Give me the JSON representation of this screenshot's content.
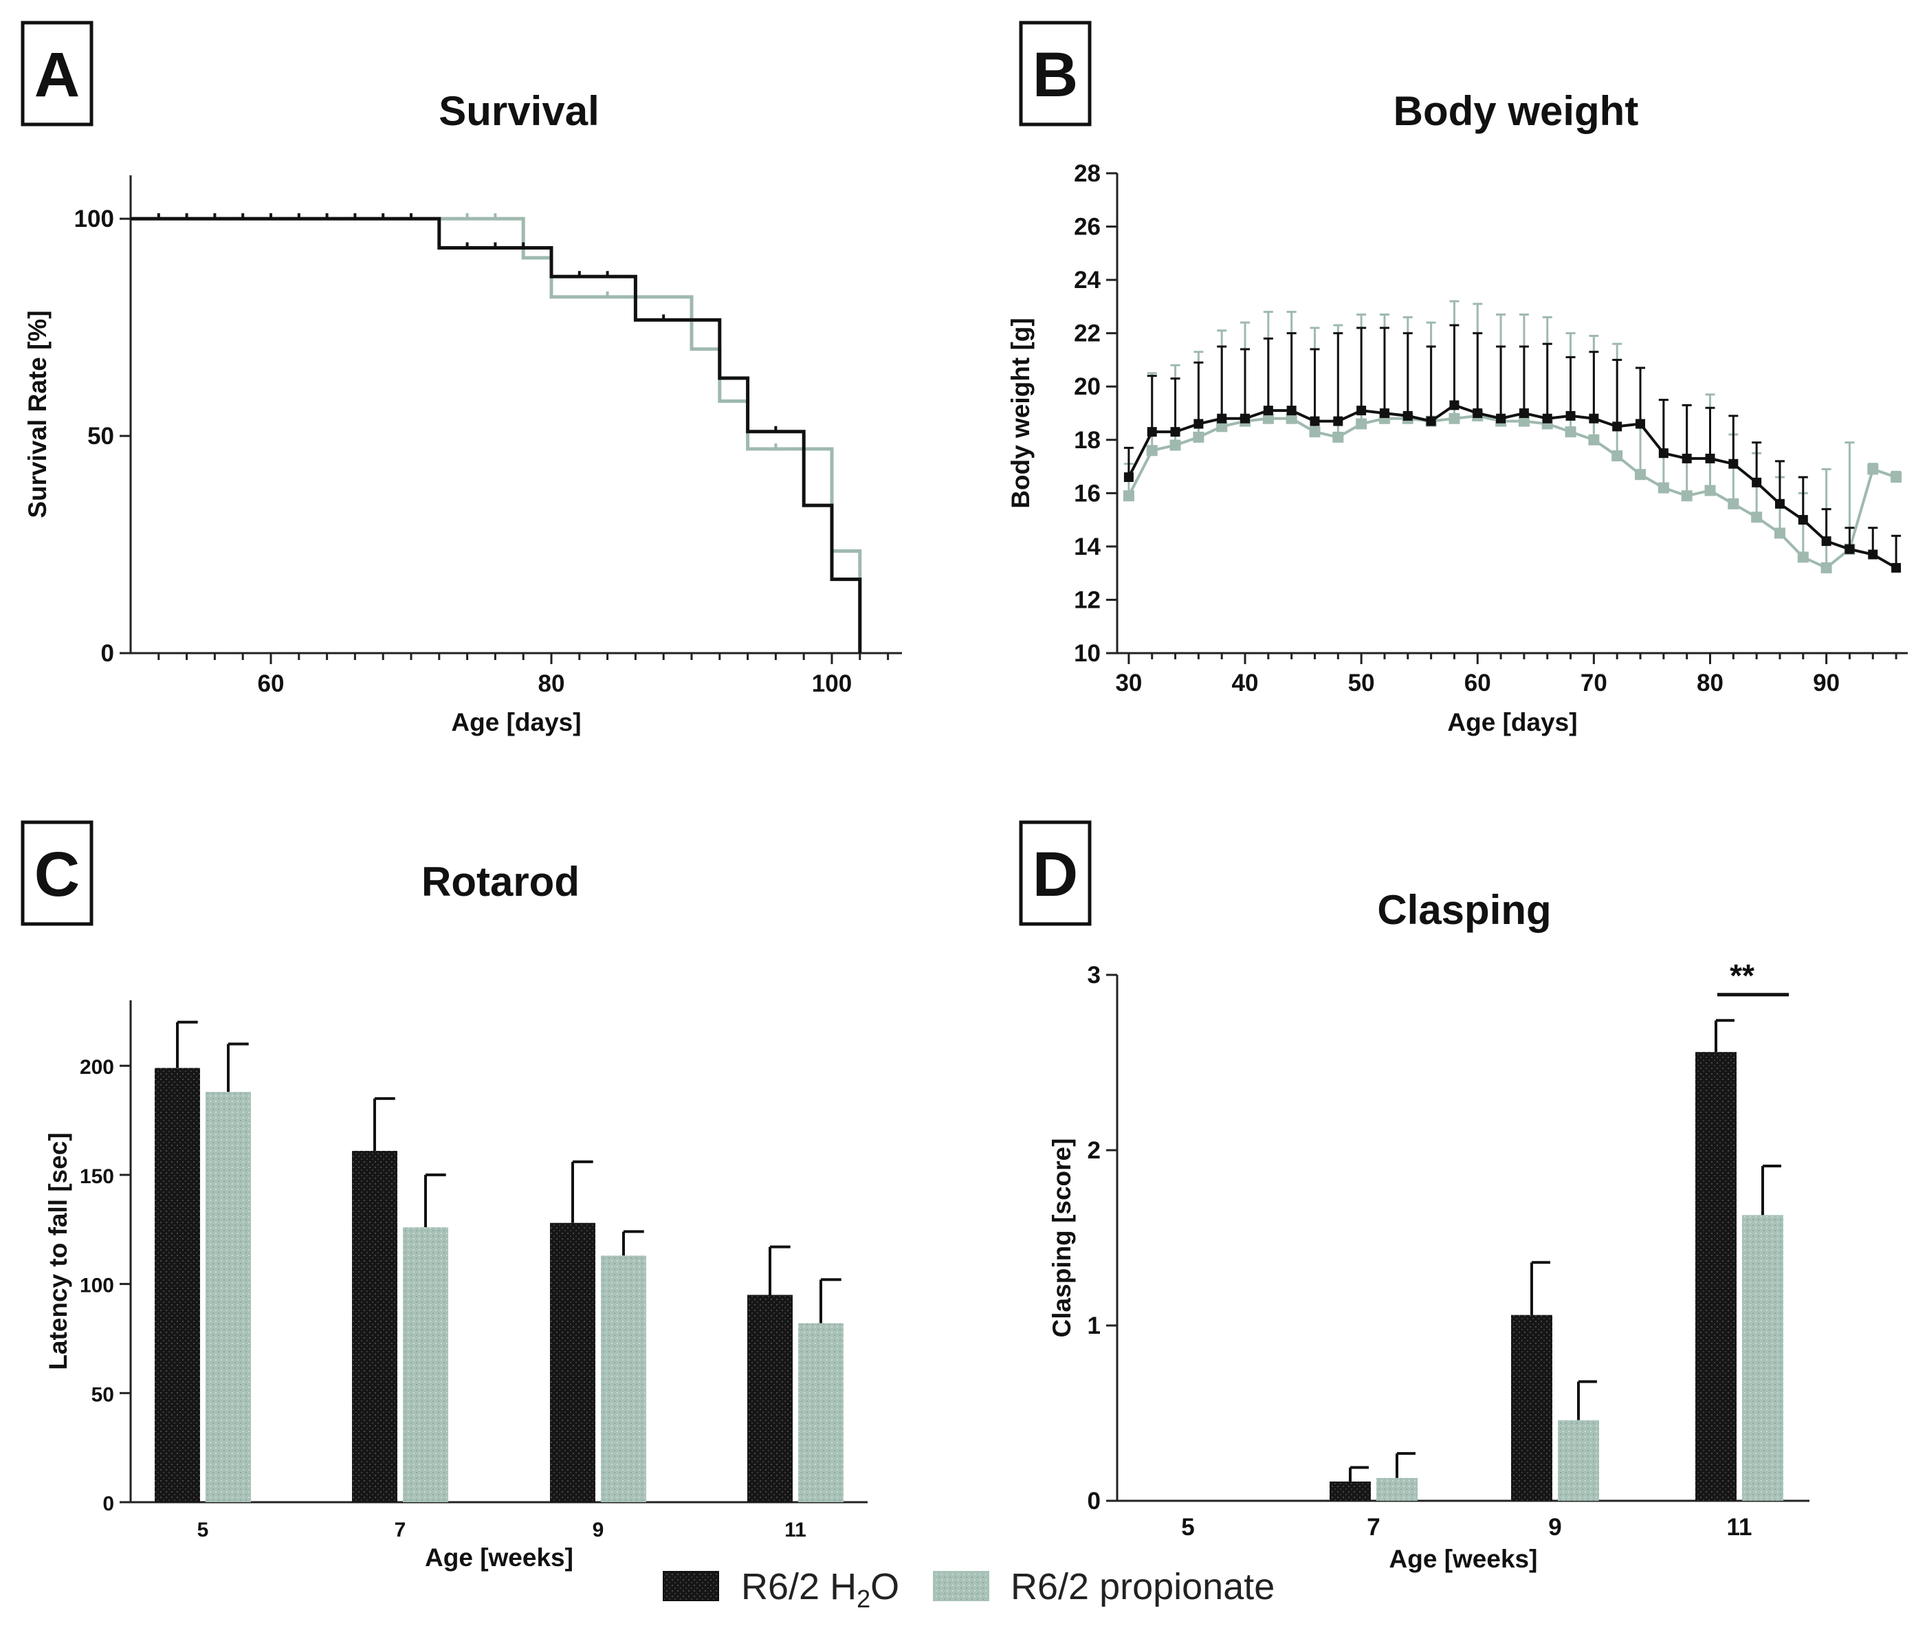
{
  "colors": {
    "h2o": "#111111",
    "propionate": "#a9c2b8",
    "propionate_line": "#9fb9ae",
    "axis": "#222222"
  },
  "legend": {
    "h2o_label_base": "R6/2 H",
    "h2o_label_sub": "2",
    "h2o_label_tail": "O",
    "propionate_label": "R6/2 propionate"
  },
  "chart_data": [
    {
      "id": "A",
      "type": "line",
      "letter": "A",
      "title": "Survival",
      "xlabel": "Age [days]",
      "ylabel": "Survival Rate [%]",
      "xlim": [
        50,
        105
      ],
      "ylim": [
        0,
        110
      ],
      "xticks": [
        60,
        80,
        100
      ],
      "yticks": [
        0,
        50,
        100
      ],
      "step": true,
      "series": [
        {
          "name": "R6/2 H2O",
          "x": [
            50,
            72,
            80,
            86,
            92,
            94,
            98,
            100,
            102
          ],
          "y": [
            100,
            93.3,
            86.7,
            76.7,
            63.3,
            51,
            34,
            17,
            0
          ],
          "censor_x": [
            52,
            54,
            56,
            58,
            60,
            62,
            64,
            66,
            68,
            70,
            74,
            76,
            78,
            82,
            84,
            88,
            96
          ]
        },
        {
          "name": "R6/2 propionate",
          "x": [
            50,
            78,
            80,
            90,
            92,
            94,
            100,
            102
          ],
          "y": [
            100,
            91,
            82,
            70,
            58,
            47,
            23.5,
            0
          ],
          "censor_x": [
            74,
            76,
            84,
            86,
            96,
            98
          ]
        }
      ]
    },
    {
      "id": "B",
      "type": "line",
      "letter": "B",
      "title": "Body weight",
      "xlabel": "Age [days]",
      "ylabel": "Body weight [g]",
      "xlim": [
        29,
        97
      ],
      "ylim": [
        10,
        28
      ],
      "xticks": [
        30,
        40,
        50,
        60,
        70,
        80,
        90
      ],
      "yticks": [
        10,
        12,
        14,
        16,
        18,
        20,
        22,
        24,
        26,
        28
      ],
      "series": [
        {
          "name": "R6/2 H2O",
          "x": [
            30,
            32,
            34,
            36,
            38,
            40,
            42,
            44,
            46,
            48,
            50,
            52,
            54,
            56,
            58,
            60,
            62,
            64,
            66,
            68,
            70,
            72,
            74,
            76,
            78,
            80,
            82,
            84,
            86,
            88,
            90,
            92,
            94,
            96
          ],
          "y": [
            16.6,
            18.3,
            18.3,
            18.6,
            18.8,
            18.8,
            19.1,
            19.1,
            18.7,
            18.7,
            19.1,
            19.0,
            18.9,
            18.7,
            19.3,
            19.0,
            18.8,
            19.0,
            18.8,
            18.9,
            18.8,
            18.5,
            18.6,
            17.5,
            17.3,
            17.3,
            17.1,
            16.4,
            15.6,
            15.0,
            14.2,
            13.9,
            13.7,
            13.2
          ],
          "err": [
            1.1,
            2.1,
            2.0,
            2.3,
            2.7,
            2.6,
            2.7,
            2.9,
            2.7,
            3.3,
            3.1,
            3.2,
            3.1,
            2.8,
            3.0,
            3.0,
            2.7,
            2.5,
            2.8,
            2.2,
            2.5,
            2.5,
            2.1,
            2.0,
            2.0,
            1.9,
            1.8,
            1.5,
            1.6,
            1.6,
            1.2,
            0.8,
            1.0,
            1.2
          ]
        },
        {
          "name": "R6/2 propionate",
          "x": [
            30,
            32,
            34,
            36,
            38,
            40,
            42,
            44,
            46,
            48,
            50,
            52,
            54,
            56,
            58,
            60,
            62,
            64,
            66,
            68,
            70,
            72,
            74,
            76,
            78,
            80,
            82,
            84,
            86,
            88,
            90,
            92,
            94,
            96
          ],
          "y": [
            15.9,
            17.6,
            17.8,
            18.1,
            18.5,
            18.7,
            18.8,
            18.8,
            18.3,
            18.1,
            18.6,
            18.8,
            18.8,
            18.7,
            18.8,
            18.9,
            18.7,
            18.7,
            18.6,
            18.3,
            18.0,
            17.4,
            16.7,
            16.2,
            15.9,
            16.1,
            15.6,
            15.1,
            14.5,
            13.6,
            13.2,
            13.9,
            16.9,
            16.6
          ],
          "err": [
            1.2,
            2.9,
            3.0,
            3.2,
            3.6,
            3.7,
            4.0,
            4.0,
            3.9,
            4.2,
            4.1,
            3.9,
            3.8,
            3.7,
            4.4,
            4.2,
            4.0,
            4.0,
            4.0,
            3.7,
            3.9,
            4.2,
            4.0,
            3.3,
            3.4,
            3.6,
            2.6,
            2.4,
            2.1,
            2.4,
            3.7,
            4.0,
            0.2,
            0.2
          ]
        }
      ]
    },
    {
      "id": "C",
      "type": "bar",
      "letter": "C",
      "title": "Rotarod",
      "xlabel": "Age [weeks]",
      "ylabel": "Latency to fall [sec]",
      "categories": [
        "5",
        "7",
        "9",
        "11"
      ],
      "ylim": [
        0,
        230
      ],
      "yticks": [
        0,
        50,
        100,
        150,
        200
      ],
      "series": [
        {
          "name": "R6/2 H2O",
          "values": [
            199,
            161,
            128,
            95
          ],
          "err": [
            21,
            24,
            28,
            22
          ]
        },
        {
          "name": "R6/2 propionate",
          "values": [
            188,
            126,
            113,
            82
          ],
          "err": [
            22,
            24,
            11,
            20
          ]
        }
      ]
    },
    {
      "id": "D",
      "type": "bar",
      "letter": "D",
      "title": "Clasping",
      "xlabel": "Age [weeks]",
      "ylabel": "Clasping [score]",
      "categories": [
        "5",
        "7",
        "9",
        "11"
      ],
      "ylim": [
        0,
        3
      ],
      "yticks": [
        0,
        1,
        2,
        3
      ],
      "series": [
        {
          "name": "R6/2 H2O",
          "values": [
            0,
            0.11,
            1.06,
            2.56
          ],
          "err": [
            0,
            0.08,
            0.3,
            0.18
          ]
        },
        {
          "name": "R6/2 propionate",
          "values": [
            0,
            0.13,
            0.46,
            1.63
          ],
          "err": [
            0,
            0.14,
            0.22,
            0.28
          ]
        }
      ],
      "significance": {
        "category": "11",
        "label": "**"
      }
    }
  ]
}
